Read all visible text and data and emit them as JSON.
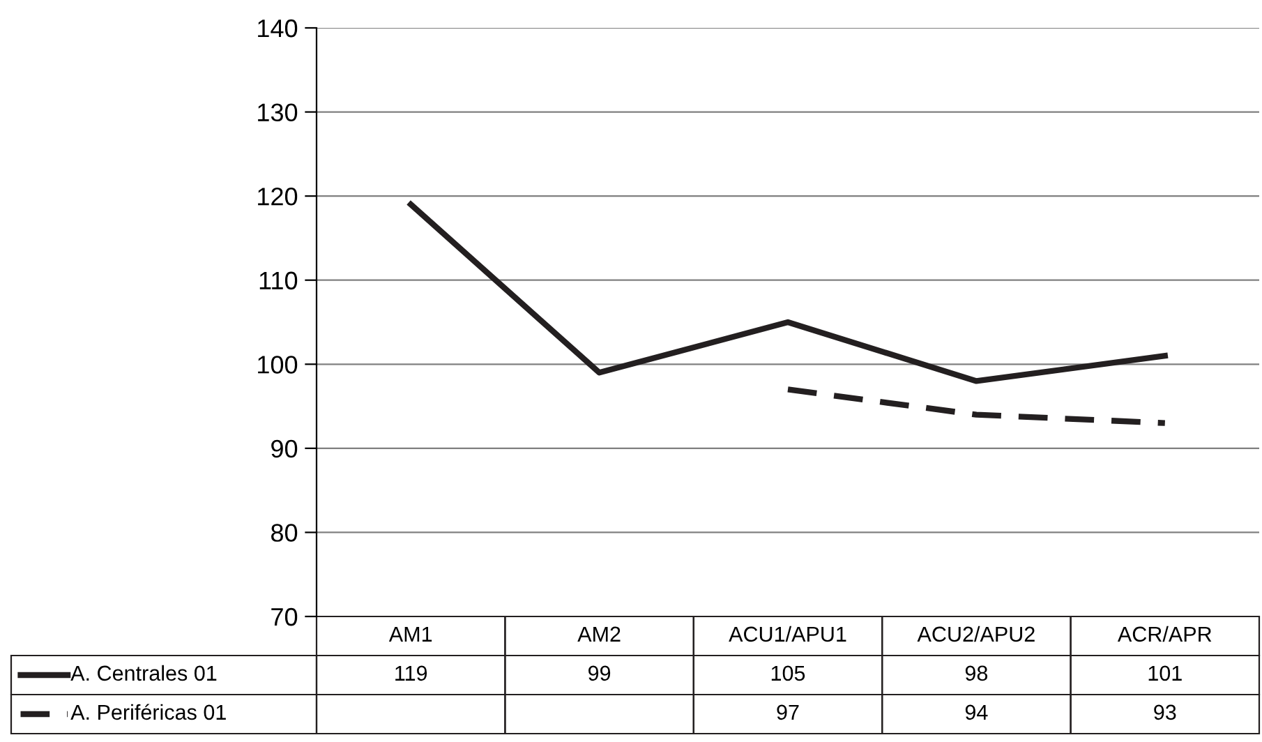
{
  "chart_data": {
    "type": "line",
    "categories": [
      "AM1",
      "AM2",
      "ACU1/APU1",
      "ACU2/APU2",
      "ACR/APR"
    ],
    "series": [
      {
        "name": "A. Centrales 01",
        "color": "#231f20",
        "line_style": "solid",
        "values": [
          119,
          99,
          105,
          98,
          101
        ]
      },
      {
        "name": "A. Periféricas 01",
        "color": "#231f20",
        "line_style": "dashed",
        "values": [
          null,
          null,
          97,
          94,
          93
        ]
      }
    ],
    "ylim": [
      70,
      140
    ],
    "yticks": [
      70,
      80,
      90,
      100,
      110,
      120,
      130,
      140
    ],
    "grid": "y",
    "data_labels": true,
    "legend": "bottom",
    "marker": "none"
  }
}
